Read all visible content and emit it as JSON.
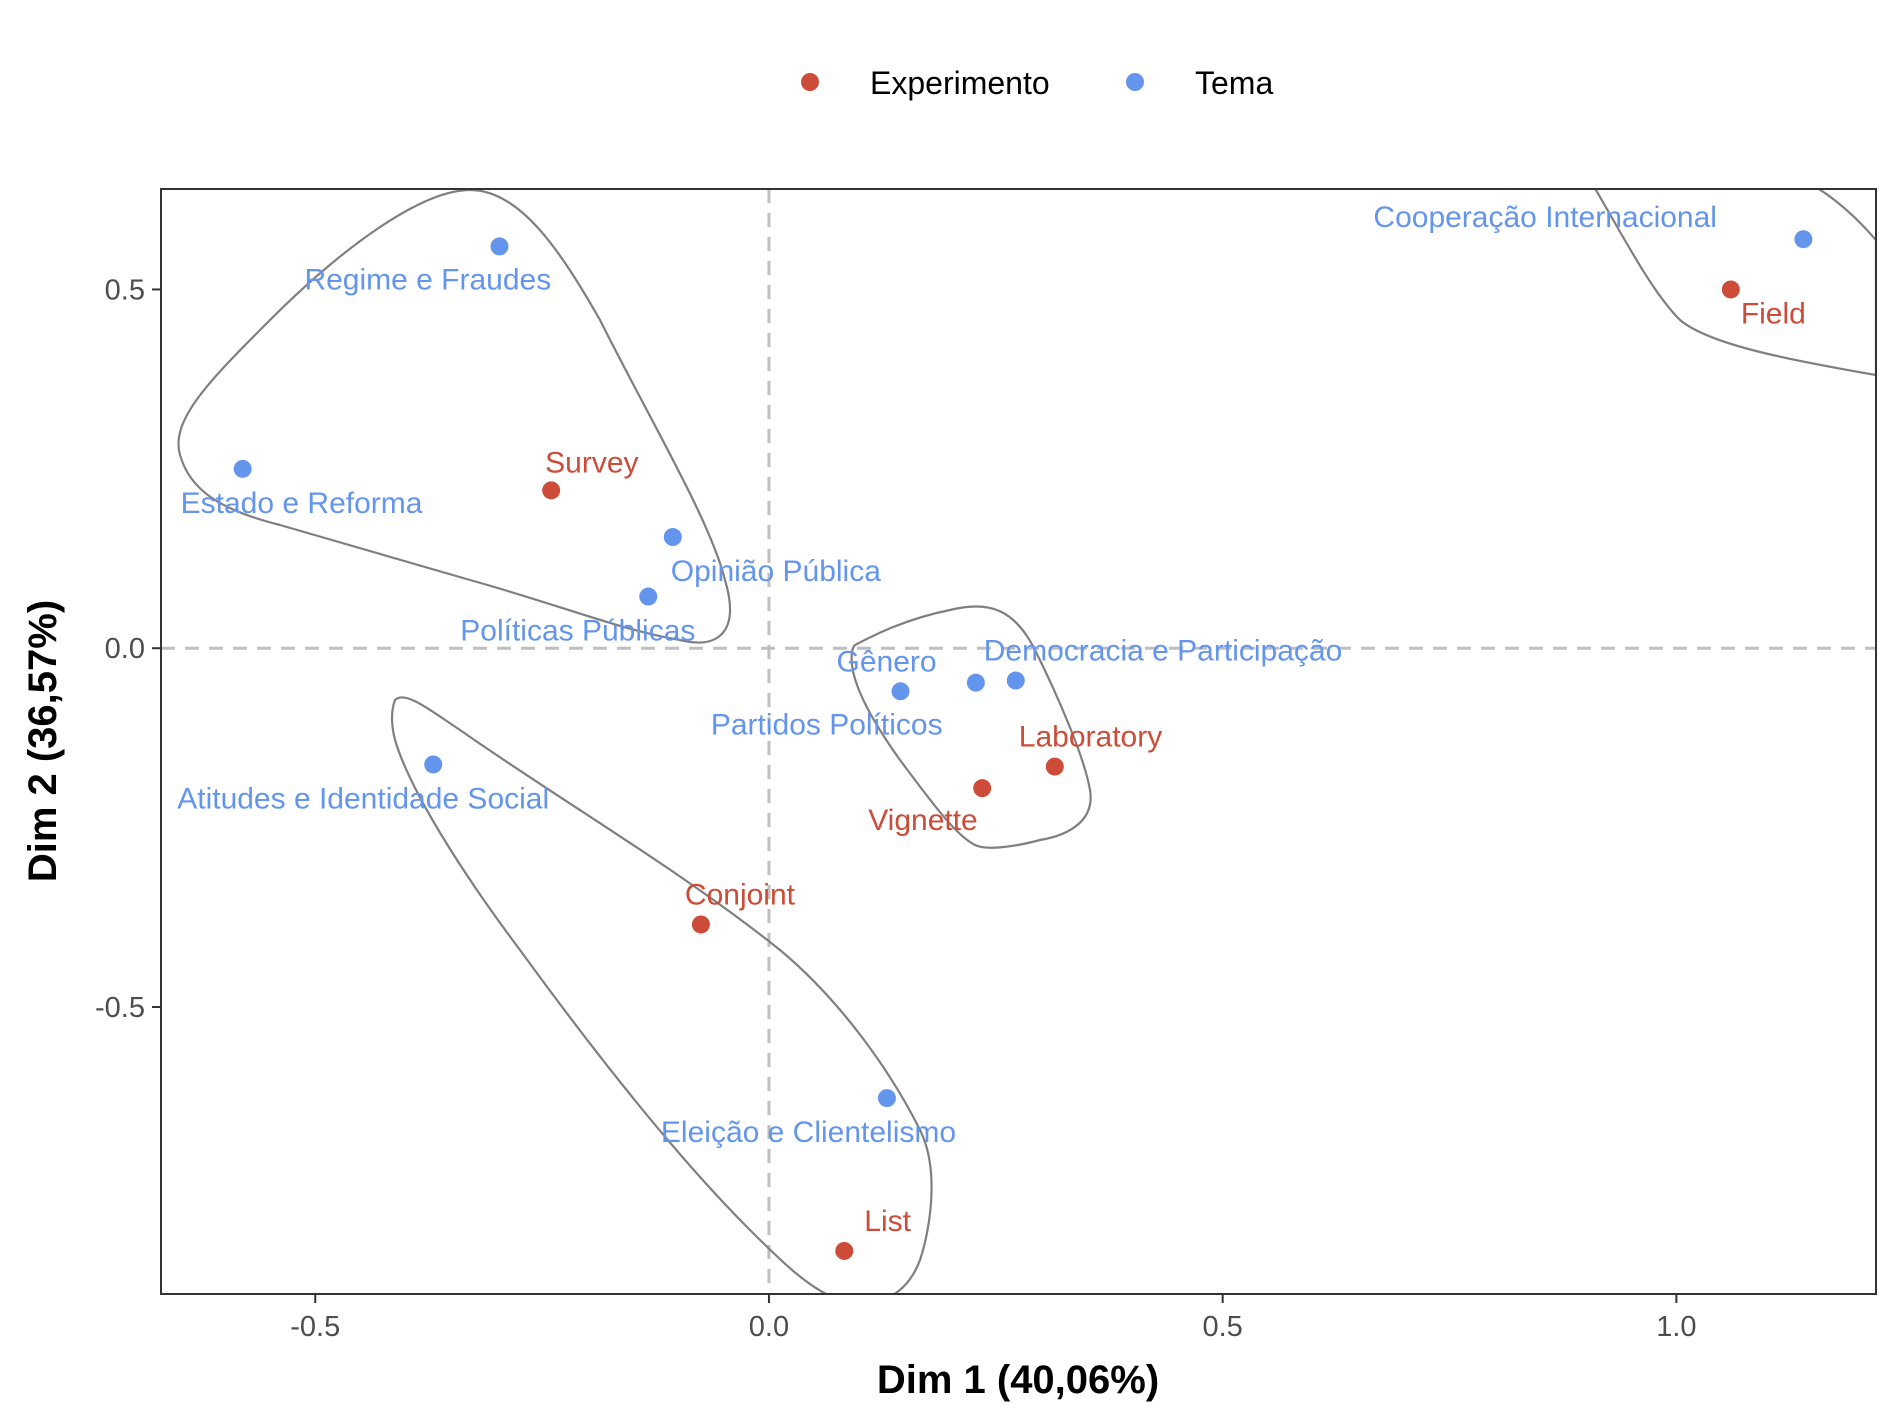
{
  "chart_data": {
    "type": "scatter",
    "title": "",
    "xlabel": "Dim 1 (40,06%)",
    "ylabel": "Dim 2 (36,57%)",
    "xlim": [
      -0.67,
      1.22
    ],
    "ylim": [
      -0.9,
      0.64
    ],
    "xticks": [
      -0.5,
      0.0,
      0.5,
      1.0
    ],
    "yticks": [
      -0.5,
      0.0,
      0.5
    ],
    "xtick_labels": [
      "-0.5",
      "0.0",
      "0.5",
      "1.0"
    ],
    "ytick_labels": [
      "-0.5",
      "0.0",
      "0.5"
    ],
    "grid": false,
    "reference_lines": {
      "x": 0,
      "y": 0,
      "style": "dashed"
    },
    "legend": {
      "position": "top",
      "entries": [
        "Experimento",
        "Tema"
      ]
    },
    "colors": {
      "Experimento": "#CC4C39",
      "Tema": "#6495ED",
      "hull": "#7f7f7f"
    },
    "series": [
      {
        "name": "Experimento",
        "points": [
          {
            "label": "Field",
            "x": 1.06,
            "y": 0.5
          },
          {
            "label": "Survey",
            "x": -0.24,
            "y": 0.22
          },
          {
            "label": "Laboratory",
            "x": 0.315,
            "y": -0.165
          },
          {
            "label": "Vignette",
            "x": 0.235,
            "y": -0.195
          },
          {
            "label": "Conjoint",
            "x": -0.075,
            "y": -0.385
          },
          {
            "label": "List",
            "x": 0.083,
            "y": -0.84
          }
        ]
      },
      {
        "name": "Tema",
        "points": [
          {
            "label": "Cooperação Internacional",
            "x": 1.14,
            "y": 0.57
          },
          {
            "label": "Regime e Fraudes",
            "x": -0.297,
            "y": 0.56
          },
          {
            "label": "Estado e Reforma",
            "x": -0.58,
            "y": 0.25
          },
          {
            "label": "Opinião Pública",
            "x": -0.106,
            "y": 0.155
          },
          {
            "label": "Políticas Públicas",
            "x": -0.133,
            "y": 0.072
          },
          {
            "label": "Gênero",
            "x": 0.145,
            "y": -0.06
          },
          {
            "label": "Democracia e Participação",
            "x": 0.272,
            "y": -0.045
          },
          {
            "label": "Partidos Políticos",
            "x": 0.228,
            "y": -0.048
          },
          {
            "label": "Atitudes e Identidade Social",
            "x": -0.37,
            "y": -0.162
          },
          {
            "label": "Eleição e Clientelismo",
            "x": 0.13,
            "y": -0.627
          }
        ]
      }
    ]
  }
}
